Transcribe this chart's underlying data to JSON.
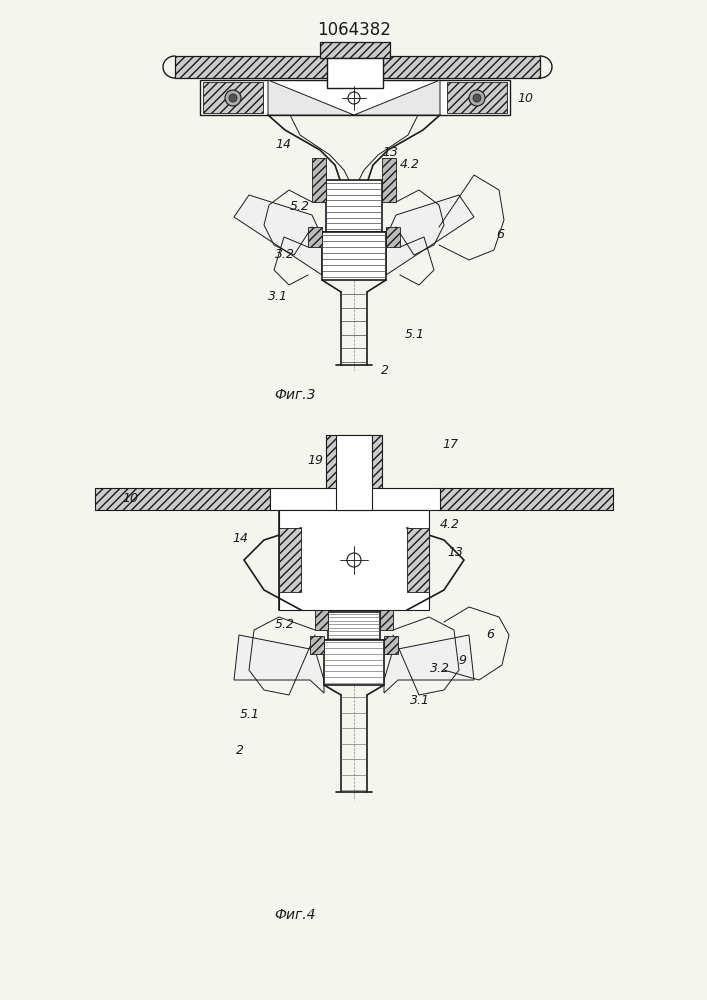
{
  "title": "1064382",
  "fig3_label": "Фиг.3",
  "fig4_label": "Фиг.4",
  "bg_color": "#f5f5f0",
  "line_color": "#1a1a1a",
  "title_fontsize": 12,
  "fig_label_fontsize": 10,
  "label_fontsize": 9
}
